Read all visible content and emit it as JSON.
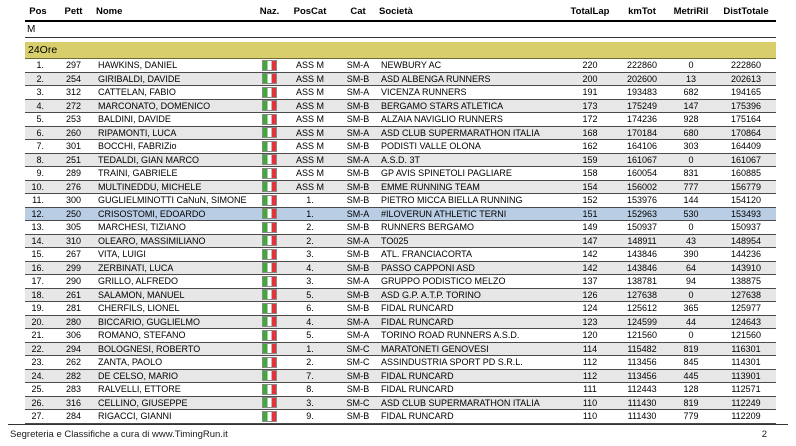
{
  "header": {
    "columns": [
      "Pos",
      "Pett",
      "Nome",
      "Naz.",
      "PosCat",
      "Cat",
      "Società",
      "TotalLap",
      "kmTot",
      "MetriRil",
      "DistTotale"
    ]
  },
  "groups": {
    "gender_label": "M",
    "section_label": "24Ore"
  },
  "flag": {
    "country": "Italy",
    "green": "#3faa34",
    "white": "#ffffff",
    "red": "#e23338"
  },
  "colors": {
    "section_bg": "#d8ce6b",
    "row_alt_bg": "#e7e7e7",
    "highlight_bg": "#b9cde4"
  },
  "rows": [
    {
      "pos": "1.",
      "pett": "297",
      "nome": "HAWKINS, DANIEL",
      "poscat": "ASS M",
      "cat": "SM-A",
      "societa": "NEWBURY AC",
      "totallap": "220",
      "kmtot": "222860",
      "metriril": "0",
      "disttotale": "222860",
      "highlighted": false
    },
    {
      "pos": "2.",
      "pett": "254",
      "nome": "GIRIBALDI, DAVIDE",
      "poscat": "ASS M",
      "cat": "SM-B",
      "societa": "ASD ALBENGA RUNNERS",
      "totallap": "200",
      "kmtot": "202600",
      "metriril": "13",
      "disttotale": "202613",
      "highlighted": false
    },
    {
      "pos": "3.",
      "pett": "312",
      "nome": "CATTELAN, FABIO",
      "poscat": "ASS M",
      "cat": "SM-A",
      "societa": "VICENZA RUNNERS",
      "totallap": "191",
      "kmtot": "193483",
      "metriril": "682",
      "disttotale": "194165",
      "highlighted": false
    },
    {
      "pos": "4.",
      "pett": "272",
      "nome": "MARCONATO, DOMENICO",
      "poscat": "ASS M",
      "cat": "SM-B",
      "societa": "BERGAMO STARS ATLETICA",
      "totallap": "173",
      "kmtot": "175249",
      "metriril": "147",
      "disttotale": "175396",
      "highlighted": false
    },
    {
      "pos": "5.",
      "pett": "253",
      "nome": "BALDINI, DAVIDE",
      "poscat": "ASS M",
      "cat": "SM-B",
      "societa": "ALZAIA NAVIGLIO RUNNERS",
      "totallap": "172",
      "kmtot": "174236",
      "metriril": "928",
      "disttotale": "175164",
      "highlighted": false
    },
    {
      "pos": "6.",
      "pett": "260",
      "nome": "RIPAMONTI, LUCA",
      "poscat": "ASS M",
      "cat": "SM-A",
      "societa": "ASD CLUB SUPERMARATHON ITALIA",
      "totallap": "168",
      "kmtot": "170184",
      "metriril": "680",
      "disttotale": "170864",
      "highlighted": false
    },
    {
      "pos": "7.",
      "pett": "301",
      "nome": "BOCCHI, FABRIZio",
      "poscat": "ASS M",
      "cat": "SM-B",
      "societa": "PODISTI VALLE OLONA",
      "totallap": "162",
      "kmtot": "164106",
      "metriril": "303",
      "disttotale": "164409",
      "highlighted": false
    },
    {
      "pos": "8.",
      "pett": "251",
      "nome": "TEDALDI, GIAN MARCO",
      "poscat": "ASS M",
      "cat": "SM-A",
      "societa": "A.S.D. 3T",
      "totallap": "159",
      "kmtot": "161067",
      "metriril": "0",
      "disttotale": "161067",
      "highlighted": false
    },
    {
      "pos": "9.",
      "pett": "289",
      "nome": "TRAINI, GABRIELE",
      "poscat": "ASS M",
      "cat": "SM-B",
      "societa": "GP AVIS SPINETOLI PAGLIARE",
      "totallap": "158",
      "kmtot": "160054",
      "metriril": "831",
      "disttotale": "160885",
      "highlighted": false
    },
    {
      "pos": "10.",
      "pett": "276",
      "nome": "MULTINEDDU, MICHELE",
      "poscat": "ASS M",
      "cat": "SM-B",
      "societa": "EMME RUNNING TEAM",
      "totallap": "154",
      "kmtot": "156002",
      "metriril": "777",
      "disttotale": "156779",
      "highlighted": false
    },
    {
      "pos": "11.",
      "pett": "300",
      "nome": "GUGLIELMINOTTI CaNuN, SIMONE",
      "poscat": "1.",
      "cat": "SM-B",
      "societa": "PIETRO MICCA BIELLA RUNNING",
      "totallap": "152",
      "kmtot": "153976",
      "metriril": "144",
      "disttotale": "154120",
      "highlighted": false
    },
    {
      "pos": "12.",
      "pett": "250",
      "nome": "CRISOSTOMI, EDOARDO",
      "poscat": "1.",
      "cat": "SM-A",
      "societa": "#ILOVERUN ATHLETIC TERNI",
      "totallap": "151",
      "kmtot": "152963",
      "metriril": "530",
      "disttotale": "153493",
      "highlighted": true
    },
    {
      "pos": "13.",
      "pett": "305",
      "nome": "MARCHESI, TIZIANO",
      "poscat": "2.",
      "cat": "SM-B",
      "societa": "RUNNERS BERGAMO",
      "totallap": "149",
      "kmtot": "150937",
      "metriril": "0",
      "disttotale": "150937",
      "highlighted": false
    },
    {
      "pos": "14.",
      "pett": "310",
      "nome": "OLEARO, MASSIMILIANO",
      "poscat": "2.",
      "cat": "SM-A",
      "societa": "TO025",
      "totallap": "147",
      "kmtot": "148911",
      "metriril": "43",
      "disttotale": "148954",
      "highlighted": false
    },
    {
      "pos": "15.",
      "pett": "267",
      "nome": "VITA, LUIGI",
      "poscat": "3.",
      "cat": "SM-B",
      "societa": "ATL. FRANCIACORTA",
      "totallap": "142",
      "kmtot": "143846",
      "metriril": "390",
      "disttotale": "144236",
      "highlighted": false
    },
    {
      "pos": "16.",
      "pett": "299",
      "nome": "ZERBINATI, LUCA",
      "poscat": "4.",
      "cat": "SM-B",
      "societa": "PASSO CAPPONI ASD",
      "totallap": "142",
      "kmtot": "143846",
      "metriril": "64",
      "disttotale": "143910",
      "highlighted": false
    },
    {
      "pos": "17.",
      "pett": "290",
      "nome": "GRILLO, ALFREDO",
      "poscat": "3.",
      "cat": "SM-A",
      "societa": "GRUPPO PODISTICO MELZO",
      "totallap": "137",
      "kmtot": "138781",
      "metriril": "94",
      "disttotale": "138875",
      "highlighted": false
    },
    {
      "pos": "18.",
      "pett": "261",
      "nome": "SALAMON, MANUEL",
      "poscat": "5.",
      "cat": "SM-B",
      "societa": "ASD G.P. A.T.P. TORINO",
      "totallap": "126",
      "kmtot": "127638",
      "metriril": "0",
      "disttotale": "127638",
      "highlighted": false
    },
    {
      "pos": "19.",
      "pett": "281",
      "nome": "CHERFILS, LIONEL",
      "poscat": "6.",
      "cat": "SM-B",
      "societa": "FIDAL RUNCARD",
      "totallap": "124",
      "kmtot": "125612",
      "metriril": "365",
      "disttotale": "125977",
      "highlighted": false
    },
    {
      "pos": "20.",
      "pett": "280",
      "nome": "BICCARIO, GUGLIELMO",
      "poscat": "4.",
      "cat": "SM-A",
      "societa": "FIDAL RUNCARD",
      "totallap": "123",
      "kmtot": "124599",
      "metriril": "44",
      "disttotale": "124643",
      "highlighted": false
    },
    {
      "pos": "21.",
      "pett": "306",
      "nome": "ROMANO, STEFANO",
      "poscat": "5.",
      "cat": "SM-A",
      "societa": "TORINO ROAD RUNNERS A.S.D.",
      "totallap": "120",
      "kmtot": "121560",
      "metriril": "0",
      "disttotale": "121560",
      "highlighted": false
    },
    {
      "pos": "22.",
      "pett": "294",
      "nome": "BOLOGNESI, ROBERTO",
      "poscat": "1.",
      "cat": "SM-C",
      "societa": "MARATONETI GENOVESI",
      "totallap": "114",
      "kmtot": "115482",
      "metriril": "819",
      "disttotale": "116301",
      "highlighted": false
    },
    {
      "pos": "23.",
      "pett": "262",
      "nome": "ZANTA, PAOLO",
      "poscat": "2.",
      "cat": "SM-C",
      "societa": "ASSINDUSTRIA SPORT PD S.R.L.",
      "totallap": "112",
      "kmtot": "113456",
      "metriril": "845",
      "disttotale": "114301",
      "highlighted": false
    },
    {
      "pos": "24.",
      "pett": "282",
      "nome": "DE CELSO, MARIO",
      "poscat": "7.",
      "cat": "SM-B",
      "societa": "FIDAL RUNCARD",
      "totallap": "112",
      "kmtot": "113456",
      "metriril": "445",
      "disttotale": "113901",
      "highlighted": false
    },
    {
      "pos": "25.",
      "pett": "283",
      "nome": "RALVELLI, ETTORE",
      "poscat": "8.",
      "cat": "SM-B",
      "societa": "FIDAL RUNCARD",
      "totallap": "111",
      "kmtot": "112443",
      "metriril": "128",
      "disttotale": "112571",
      "highlighted": false
    },
    {
      "pos": "26.",
      "pett": "316",
      "nome": "CELLINO, GIUSEPPE",
      "poscat": "3.",
      "cat": "SM-C",
      "societa": "ASD CLUB SUPERMARATHON ITALIA",
      "totallap": "110",
      "kmtot": "111430",
      "metriril": "819",
      "disttotale": "112249",
      "highlighted": false
    },
    {
      "pos": "27.",
      "pett": "284",
      "nome": "RIGACCI, GIANNI",
      "poscat": "9.",
      "cat": "SM-B",
      "societa": "FIDAL RUNCARD",
      "totallap": "110",
      "kmtot": "111430",
      "metriril": "779",
      "disttotale": "112209",
      "highlighted": false
    }
  ],
  "footer": {
    "left": "Segreteria e Classifiche a cura di  www.TimingRun.it",
    "page": "2"
  }
}
